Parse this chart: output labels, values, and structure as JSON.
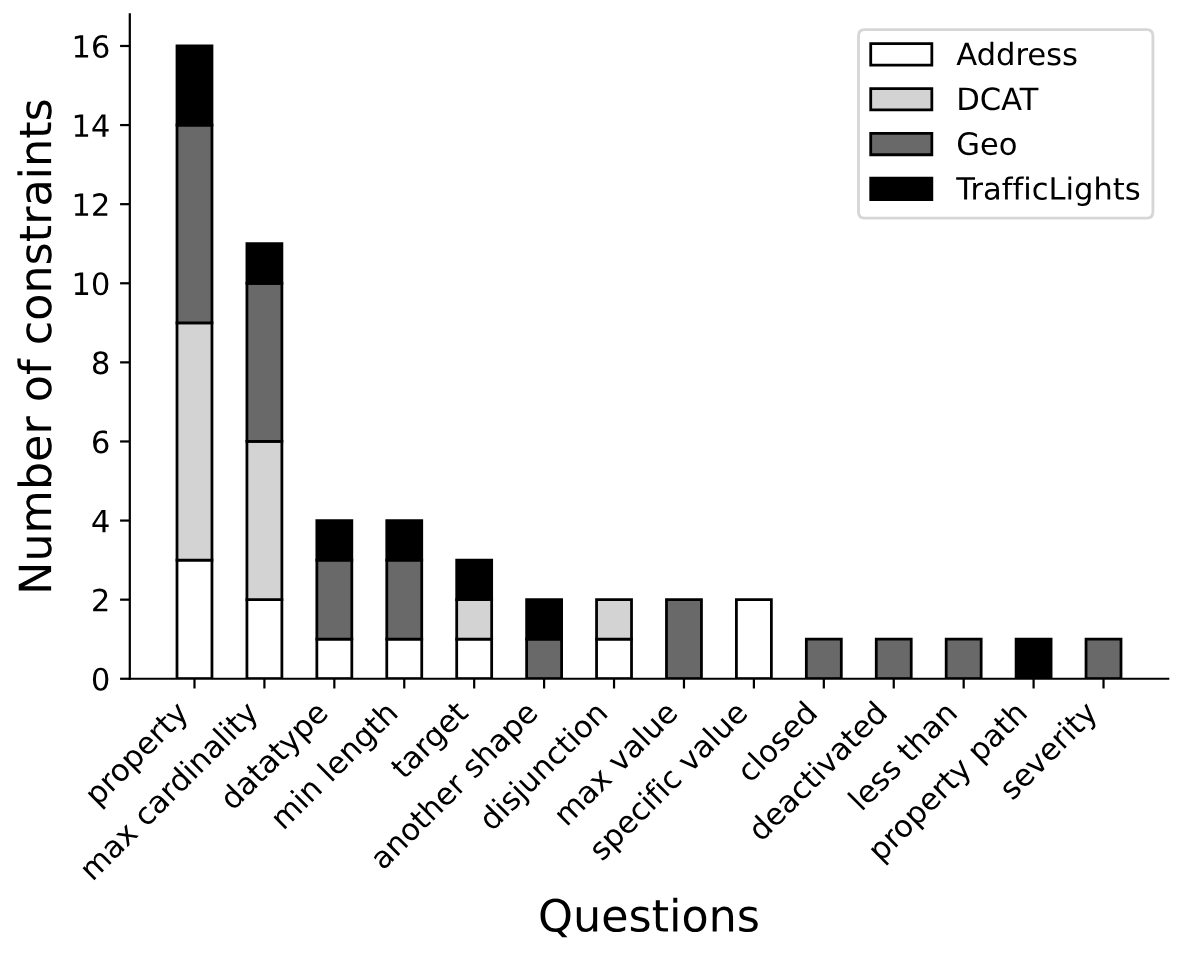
{
  "chart_data": {
    "type": "bar",
    "stacked": true,
    "xlabel": "Questions",
    "ylabel": "Number of constraints",
    "categories": [
      "property",
      "max cardinality",
      "datatype",
      "min length",
      "target",
      "another shape",
      "disjunction",
      "max value",
      "specific value",
      "closed",
      "deactivated",
      "less than",
      "property path",
      "severity"
    ],
    "series": [
      {
        "name": "Address",
        "color": "#ffffff",
        "values": [
          3,
          2,
          1,
          1,
          1,
          0,
          1,
          0,
          2,
          0,
          0,
          0,
          0,
          0
        ]
      },
      {
        "name": "DCAT",
        "color": "#d3d3d3",
        "values": [
          6,
          4,
          0,
          0,
          1,
          0,
          1,
          0,
          0,
          0,
          0,
          0,
          0,
          0
        ]
      },
      {
        "name": "Geo",
        "color": "#696969",
        "values": [
          5,
          4,
          2,
          2,
          0,
          1,
          0,
          2,
          0,
          1,
          1,
          1,
          0,
          1
        ]
      },
      {
        "name": "TrafficLights",
        "color": "#000000",
        "values": [
          2,
          1,
          1,
          1,
          1,
          1,
          0,
          0,
          0,
          0,
          0,
          0,
          1,
          0
        ]
      }
    ],
    "ylim": [
      0,
      16.8
    ],
    "yticks": [
      0,
      2,
      4,
      6,
      8,
      10,
      12,
      14,
      16
    ],
    "grid": false,
    "legend": "top right"
  }
}
